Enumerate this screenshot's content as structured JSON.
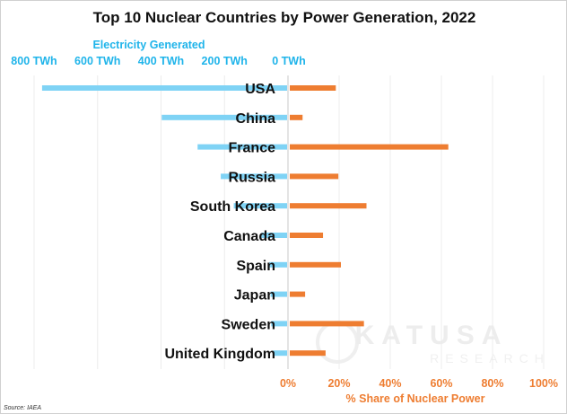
{
  "chart_data": {
    "type": "bar",
    "title": "Top 10 Nuclear Countries by Power Generation, 2022",
    "categories": [
      "USA",
      "China",
      "France",
      "Russia",
      "South Korea",
      "Canada",
      "Spain",
      "Japan",
      "Sweden",
      "United Kingdom"
    ],
    "series": [
      {
        "name": "Electricity Generated",
        "unit": "TWh",
        "color": "#7fd3f5",
        "values": [
          772,
          395,
          282,
          209,
          168,
          81,
          56,
          52,
          50,
          44
        ]
      },
      {
        "name": "% Share of Nuclear Power",
        "unit": "%",
        "color": "#ee7d31",
        "values": [
          18,
          5,
          62,
          19,
          30,
          13,
          20,
          6,
          29,
          14
        ]
      }
    ],
    "left_axis": {
      "label": "Electricity Generated",
      "range": [
        800,
        0
      ],
      "ticks": [
        "800 TWh",
        "600 TWh",
        "400 TWh",
        "200 TWh",
        "0 TWh"
      ],
      "tick_values": [
        800,
        600,
        400,
        200,
        0
      ],
      "color": "#1fb4ea"
    },
    "right_axis": {
      "label": "% Share of Nuclear Power",
      "range": [
        0,
        100
      ],
      "ticks": [
        "0%",
        "20%",
        "40%",
        "60%",
        "80%",
        "100%"
      ],
      "tick_values": [
        0,
        20,
        40,
        60,
        80,
        100
      ],
      "color": "#ee7d31"
    },
    "grid": true,
    "source": "Source: IAEA",
    "watermark": "KATUSA RESEARCH"
  }
}
